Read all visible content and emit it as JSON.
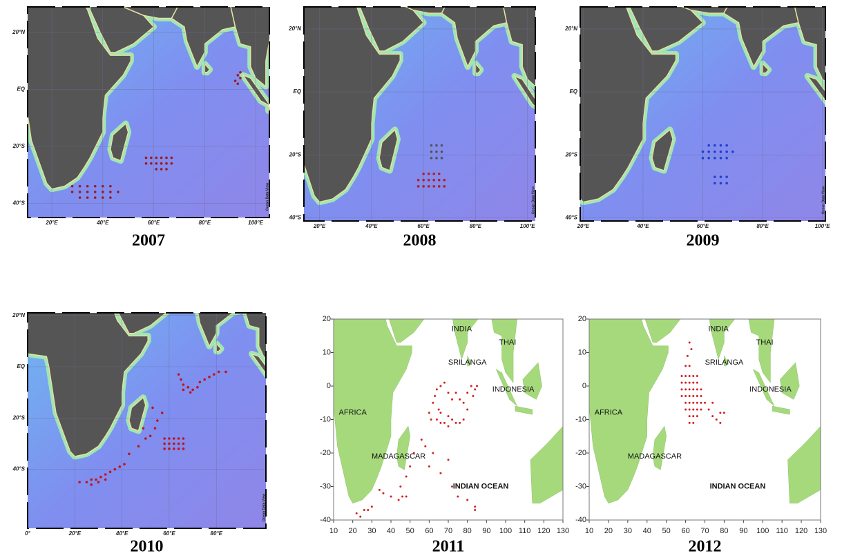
{
  "chart_data": [
    {
      "type": "scatter",
      "title": "2007",
      "xlim": [
        10.5,
        105.4
      ],
      "ylim": [
        -45,
        29
      ],
      "grid": true,
      "credit": "Ocean Data View",
      "xticks": [
        {
          "value": 20,
          "label": "20°E"
        },
        {
          "value": 40,
          "label": "40°E"
        },
        {
          "value": 60,
          "label": "60°E"
        },
        {
          "value": 80,
          "label": "80°E"
        },
        {
          "value": 100,
          "label": "100°E"
        }
      ],
      "yticks": [
        {
          "value": 20,
          "label": "20°N"
        },
        {
          "value": 0,
          "label": "EQ"
        },
        {
          "value": -20,
          "label": "20°S"
        },
        {
          "value": -40,
          "label": "40°S"
        }
      ],
      "series": [
        {
          "color": "#9b1c1c",
          "x": [
            28,
            31,
            34,
            37,
            40,
            43,
            28,
            31,
            34,
            37,
            40,
            43,
            46,
            31,
            34,
            37,
            40,
            43,
            57,
            59,
            61,
            63,
            65,
            67,
            57,
            59,
            61,
            63,
            65,
            67,
            61,
            63,
            65,
            92,
            93,
            93,
            94,
            94
          ],
          "values": [
            -34,
            -34,
            -34,
            -34,
            -34,
            -34,
            -36,
            -36,
            -36,
            -36,
            -36,
            -36,
            -36,
            -38,
            -38,
            -38,
            -38,
            -38,
            -24,
            -24,
            -24,
            -24,
            -24,
            -24,
            -26,
            -26,
            -26,
            -26,
            -26,
            -26,
            -28,
            -28,
            -28,
            3,
            5,
            2,
            6,
            4
          ]
        }
      ]
    },
    {
      "type": "scatter",
      "title": "2008",
      "xlim": [
        14,
        103
      ],
      "ylim": [
        -41,
        27
      ],
      "grid": true,
      "credit": "Ocean Data View",
      "xticks": [
        {
          "value": 20,
          "label": "20°E"
        },
        {
          "value": 40,
          "label": "40°E"
        },
        {
          "value": 60,
          "label": "60°E"
        },
        {
          "value": 80,
          "label": "80°E"
        },
        {
          "value": 100,
          "label": "100°E"
        }
      ],
      "yticks": [
        {
          "value": 20,
          "label": "20°N"
        },
        {
          "value": 0,
          "label": "EQ"
        },
        {
          "value": -20,
          "label": "20°S"
        },
        {
          "value": -40,
          "label": "40°S"
        }
      ],
      "series": [
        {
          "color": "#555555",
          "x": [
            63,
            65,
            67,
            63,
            65,
            67,
            63,
            65,
            67
          ],
          "values": [
            -17,
            -17,
            -17,
            -19,
            -19,
            -19,
            -21,
            -21,
            -21
          ]
        },
        {
          "color": "#b22222",
          "x": [
            60,
            62,
            64,
            66,
            58,
            60,
            62,
            64,
            66,
            68,
            58,
            60,
            62,
            64,
            66,
            68
          ],
          "values": [
            -26,
            -26,
            -26,
            -26,
            -28,
            -28,
            -28,
            -28,
            -28,
            -28,
            -30,
            -30,
            -30,
            -30,
            -30,
            -30
          ]
        }
      ]
    },
    {
      "type": "scatter",
      "title": "2009",
      "xlim": [
        19,
        101
      ],
      "ylim": [
        -41,
        27
      ],
      "grid": true,
      "credit": "Ocean Data View",
      "xticks": [
        {
          "value": 20,
          "label": "20°E"
        },
        {
          "value": 40,
          "label": "40°E"
        },
        {
          "value": 60,
          "label": "60°E"
        },
        {
          "value": 80,
          "label": "80°E"
        },
        {
          "value": 100,
          "label": "100°E"
        }
      ],
      "yticks": [
        {
          "value": 20,
          "label": "20°N"
        },
        {
          "value": 0,
          "label": "EQ"
        },
        {
          "value": -20,
          "label": "20°S"
        },
        {
          "value": -40,
          "label": "40°S"
        }
      ],
      "series": [
        {
          "color": "#1f3fd0",
          "x": [
            62,
            64,
            66,
            68,
            60,
            62,
            64,
            66,
            68,
            70,
            60,
            62,
            64,
            66,
            68,
            64,
            66,
            68,
            64,
            66,
            68
          ],
          "values": [
            -17,
            -17,
            -17,
            -17,
            -19,
            -19,
            -19,
            -19,
            -19,
            -19,
            -21,
            -21,
            -21,
            -21,
            -21,
            -27,
            -27,
            -27,
            -29,
            -29,
            -29
          ]
        }
      ]
    },
    {
      "type": "scatter",
      "title": "2010",
      "xlim": [
        0,
        101
      ],
      "ylim": [
        -63,
        21
      ],
      "grid": true,
      "credit": "Ocean Data View",
      "xticks": [
        {
          "value": 0,
          "label": "0°"
        },
        {
          "value": 20,
          "label": "20°E"
        },
        {
          "value": 40,
          "label": "40°E"
        },
        {
          "value": 60,
          "label": "60°E"
        },
        {
          "value": 80,
          "label": "80°E"
        }
      ],
      "yticks": [
        {
          "value": 20,
          "label": "20°N"
        },
        {
          "value": 0,
          "label": "EQ"
        },
        {
          "value": -20,
          "label": "20°S"
        },
        {
          "value": -40,
          "label": "40°S"
        }
      ],
      "series": [
        {
          "color": "#c0141c",
          "x": [
            22,
            25,
            27,
            29,
            31,
            33,
            35,
            37,
            39,
            41,
            27,
            30,
            33,
            43,
            47,
            50,
            52,
            49,
            54,
            55,
            57,
            53,
            58,
            60,
            62,
            64,
            66,
            58,
            60,
            62,
            64,
            66,
            58,
            60,
            62,
            64,
            66,
            64,
            65,
            66,
            68,
            70,
            72,
            73,
            66,
            69,
            75,
            77,
            79,
            81,
            84
          ],
          "values": [
            -45,
            -45,
            -44,
            -44,
            -43,
            -42,
            -41,
            -40,
            -39,
            -38,
            -46,
            -45,
            -44,
            -34,
            -31,
            -28,
            -27,
            -24,
            -24,
            -21,
            -18,
            -16,
            -28,
            -28,
            -28,
            -28,
            -28,
            -30,
            -30,
            -30,
            -30,
            -30,
            -32,
            -32,
            -32,
            -32,
            -32,
            -3,
            -5,
            -7,
            -8,
            -9,
            -8,
            -6,
            -9,
            -10,
            -5,
            -4,
            -3,
            -2,
            -2
          ]
        }
      ]
    },
    {
      "type": "scatter",
      "title": "2011",
      "xlim": [
        10,
        130
      ],
      "ylim": [
        -40,
        20
      ],
      "grid": false,
      "xticks": [
        10,
        20,
        30,
        40,
        50,
        60,
        70,
        80,
        90,
        100,
        110,
        120,
        130
      ],
      "yticks": [
        20,
        10,
        0,
        -10,
        -20,
        -30,
        -40
      ],
      "annotations": [
        "AFRICA",
        "INDIA",
        "THAI",
        "SRILANGA",
        "INDONESIA",
        "MADAGASCAR",
        "INDIAN OCEAN"
      ],
      "series": [
        {
          "color": "#d42020",
          "x": [
            62,
            63,
            64,
            65,
            66,
            66,
            68,
            70,
            72,
            70,
            72,
            74,
            76,
            78,
            78,
            80,
            80,
            82,
            84,
            85,
            83,
            74,
            76,
            60,
            61,
            64,
            66,
            68,
            70,
            56,
            58,
            52,
            50,
            48,
            45,
            46,
            48,
            44,
            40,
            36,
            34,
            30,
            28,
            26,
            24,
            22,
            62,
            66,
            72,
            75,
            80,
            84,
            84,
            70,
            60
          ],
          "values": [
            -5,
            -3,
            -1,
            -7,
            -8,
            0,
            1,
            -2,
            -4,
            -9,
            -10,
            -11,
            -11,
            -10,
            -5,
            -7,
            -2,
            0,
            -1,
            0,
            -3,
            -2,
            -4,
            -8,
            -10,
            -10,
            -11,
            -11,
            -12,
            -16,
            -18,
            -20,
            -24,
            -27,
            -30,
            -33,
            -33,
            -34,
            -33,
            -32,
            -31,
            -36,
            -37,
            -37,
            -39,
            -38,
            -20,
            -26,
            -30,
            -33,
            -34,
            -36,
            -37,
            -22,
            -24
          ]
        }
      ]
    },
    {
      "type": "scatter",
      "title": "2012",
      "xlim": [
        10,
        130
      ],
      "ylim": [
        -40,
        20
      ],
      "grid": false,
      "xticks": [
        10,
        20,
        30,
        40,
        50,
        60,
        70,
        80,
        90,
        100,
        110,
        120,
        130
      ],
      "yticks": [
        20,
        10,
        0,
        -10,
        -20,
        -30,
        -40
      ],
      "annotations": [
        "AFRICA",
        "INDIA",
        "THAI",
        "SRILANGA",
        "INDONESIA",
        "MADAGASCAR",
        "INDIAN OCEAN"
      ],
      "series": [
        {
          "color": "#d42020",
          "x": [
            62,
            63,
            61,
            60,
            62,
            58,
            60,
            62,
            64,
            66,
            58,
            60,
            62,
            64,
            66,
            58,
            60,
            62,
            64,
            66,
            68,
            58,
            60,
            62,
            64,
            66,
            68,
            60,
            62,
            64,
            66,
            68,
            70,
            60,
            62,
            64,
            66,
            68,
            62,
            64,
            66,
            62,
            64,
            72,
            74,
            76,
            78,
            80,
            78,
            74
          ],
          "values": [
            13,
            11,
            9,
            6,
            6,
            3,
            3,
            3,
            3,
            3,
            1,
            1,
            1,
            1,
            1,
            -1,
            -1,
            -1,
            -1,
            -1,
            -1,
            -3,
            -3,
            -3,
            -3,
            -3,
            -3,
            -5,
            -5,
            -5,
            -5,
            -5,
            -5,
            -7,
            -7,
            -7,
            -7,
            -7,
            -9,
            -9,
            -9,
            -11,
            -11,
            -7,
            -9,
            -10,
            -8,
            -8,
            -11,
            -5
          ]
        }
      ]
    }
  ]
}
